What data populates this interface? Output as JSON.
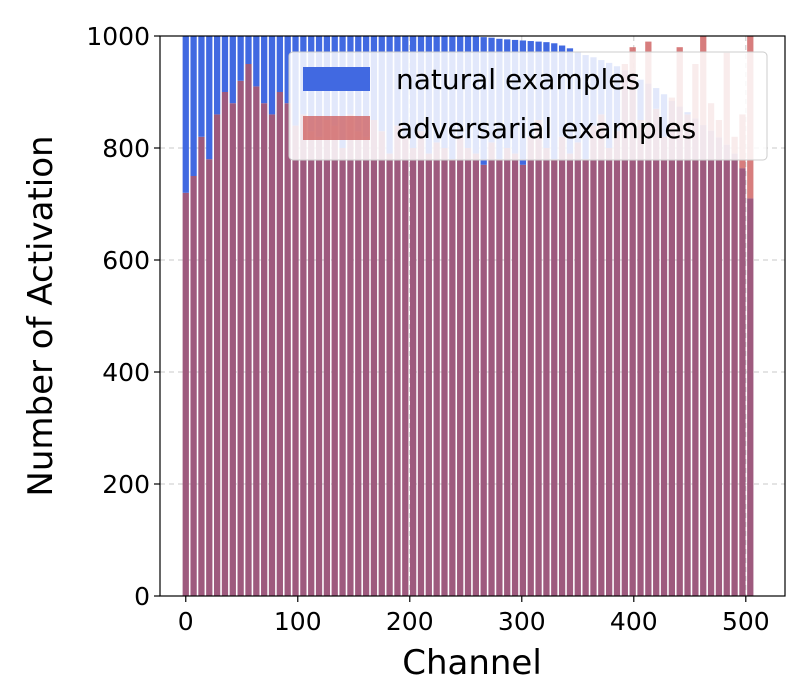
{
  "chart_data": {
    "type": "bar",
    "title": "",
    "xlabel": "Channel",
    "ylabel": "Number of Activation",
    "xlim": [
      -23,
      535
    ],
    "ylim": [
      0,
      1000
    ],
    "x_ticks": [
      "0",
      "100",
      "200",
      "300",
      "400",
      "500"
    ],
    "y_ticks": [
      "0",
      "200",
      "400",
      "600",
      "800",
      "1000"
    ],
    "grid": true,
    "grid_style": "dashed",
    "legend_position": "top-right",
    "bar_width": 5.6,
    "colors": {
      "natural": "#4169e1",
      "adversarial": "#cd5c5c",
      "overlap": "#9e5a7e"
    },
    "series": [
      {
        "name": "natural examples",
        "x": [
          0,
          7,
          14,
          21,
          28,
          35,
          42,
          49,
          56,
          63,
          70,
          77,
          84,
          91,
          98,
          105,
          112,
          119,
          126,
          133,
          140,
          147,
          154,
          161,
          168,
          175,
          182,
          189,
          196,
          203,
          210,
          217,
          224,
          231,
          238,
          245,
          252,
          259,
          266,
          273,
          280,
          287,
          294,
          301,
          308,
          315,
          322,
          329,
          336,
          343,
          350,
          357,
          364,
          371,
          378,
          385,
          392,
          399,
          406,
          413,
          420,
          427,
          434,
          441,
          448,
          455,
          462,
          469,
          476,
          483,
          490,
          497,
          504
        ],
        "values": [
          1000,
          1000,
          1000,
          1000,
          1000,
          1000,
          1000,
          1000,
          1000,
          1000,
          1000,
          1000,
          1000,
          1000,
          1000,
          1000,
          1000,
          1000,
          1000,
          1000,
          1000,
          1000,
          1000,
          1000,
          1000,
          1000,
          1000,
          1000,
          1000,
          1000,
          1000,
          1000,
          1000,
          1000,
          1000,
          1000,
          1000,
          999,
          998,
          997,
          995,
          994,
          993,
          992,
          991,
          990,
          989,
          987,
          983,
          978,
          971,
          966,
          962,
          957,
          952,
          946,
          939,
          931,
          922,
          915,
          907,
          896,
          884,
          874,
          864,
          853,
          841,
          831,
          819,
          806,
          790,
          764,
          710
        ]
      },
      {
        "name": "adversarial examples",
        "x": [
          0,
          7,
          14,
          21,
          28,
          35,
          42,
          49,
          56,
          63,
          70,
          77,
          84,
          91,
          98,
          105,
          112,
          119,
          126,
          133,
          140,
          147,
          154,
          161,
          168,
          175,
          182,
          189,
          196,
          203,
          210,
          217,
          224,
          231,
          238,
          245,
          252,
          259,
          266,
          273,
          280,
          287,
          294,
          301,
          308,
          315,
          322,
          329,
          336,
          343,
          350,
          357,
          364,
          371,
          378,
          385,
          392,
          399,
          406,
          413,
          420,
          427,
          434,
          441,
          448,
          455,
          462,
          469,
          476,
          483,
          490,
          497,
          504
        ],
        "values": [
          720,
          750,
          820,
          780,
          860,
          900,
          880,
          920,
          950,
          910,
          880,
          860,
          900,
          880,
          840,
          860,
          830,
          820,
          850,
          840,
          800,
          860,
          830,
          820,
          850,
          830,
          790,
          840,
          820,
          800,
          830,
          790,
          810,
          800,
          780,
          820,
          800,
          790,
          770,
          810,
          780,
          800,
          790,
          770,
          820,
          850,
          800,
          780,
          820,
          790,
          810,
          780,
          840,
          860,
          800,
          830,
          950,
          980,
          850,
          990,
          870,
          820,
          890,
          980,
          860,
          950,
          1000,
          880,
          850,
          970,
          820,
          860,
          1000
        ]
      }
    ]
  }
}
